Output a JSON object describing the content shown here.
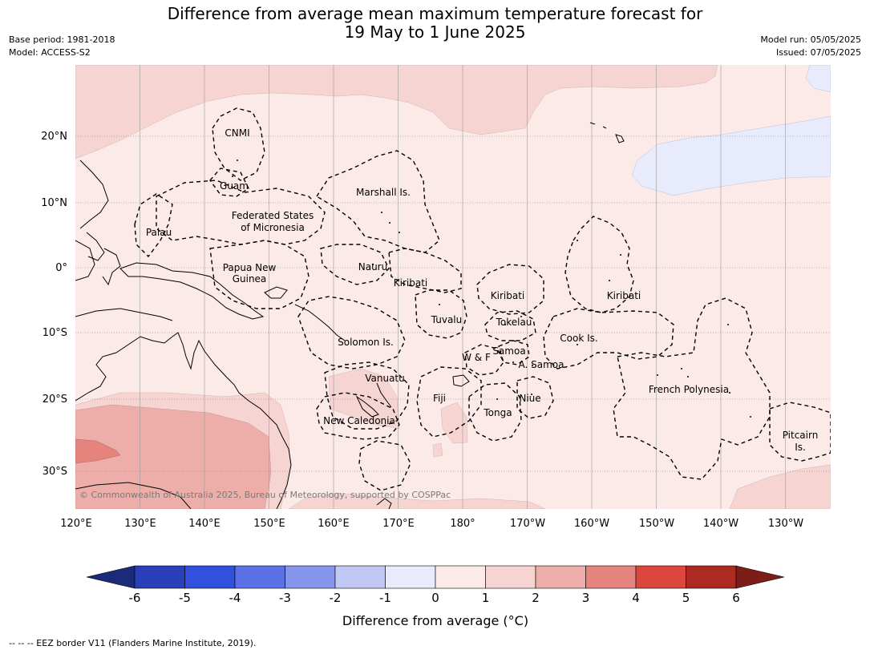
{
  "title": {
    "line1": "Difference from average mean maximum temperature forecast for",
    "line2": "19 May to 1 June 2025"
  },
  "meta": {
    "base_period": "Base period: 1981-2018",
    "model": "Model: ACCESS-S2",
    "model_run": "Model run: 05/05/2025",
    "issued": "Issued: 07/05/2025"
  },
  "map": {
    "lat_labels": [
      "20°N",
      "10°N",
      "0°",
      "10°S",
      "20°S",
      "30°S"
    ],
    "lon_labels": [
      "120°E",
      "130°E",
      "140°E",
      "150°E",
      "160°E",
      "170°E",
      "180°",
      "170°W",
      "160°W",
      "150°W",
      "140°W",
      "130°W"
    ],
    "regions": [
      "CNMI",
      "Guam",
      "Marshall Is.",
      "Federated States",
      "of Micronesia",
      "Palau",
      "Nauru",
      "Papua New",
      "Guinea",
      "Kiribati",
      "Kiribati",
      "Kiribati",
      "Tuvalu",
      "Tokelau",
      "Cook Is.",
      "Solomon Is.",
      "Samoa",
      "W & F",
      "A. Samoa",
      "Vanuatu",
      "Fiji",
      "Niue",
      "French Polynesia",
      "Tonga",
      "New Caledonia",
      "Pitcairn",
      "Is."
    ],
    "copyright": "© Commonwealth of Australia 2025, Bureau of Meteorology, supported by COSPPac"
  },
  "colorbar": {
    "ticks": [
      "-6",
      "-5",
      "-4",
      "-3",
      "-2",
      "-1",
      "0",
      "1",
      "2",
      "3",
      "4",
      "5",
      "6"
    ],
    "colors": [
      "#1c2a7a",
      "#2a40b8",
      "#3050dd",
      "#5a72e6",
      "#8595eb",
      "#c1c8f3",
      "#e8ebfb",
      "#fbeae8",
      "#f6d4d2",
      "#edaeaa",
      "#e5837d",
      "#db473e",
      "#ac2a22",
      "#7d1d18"
    ],
    "label": "Difference from average (°C)"
  },
  "footnote": "--  --  -- EEZ border V11 (Flanders Marine Institute, 2019)."
}
